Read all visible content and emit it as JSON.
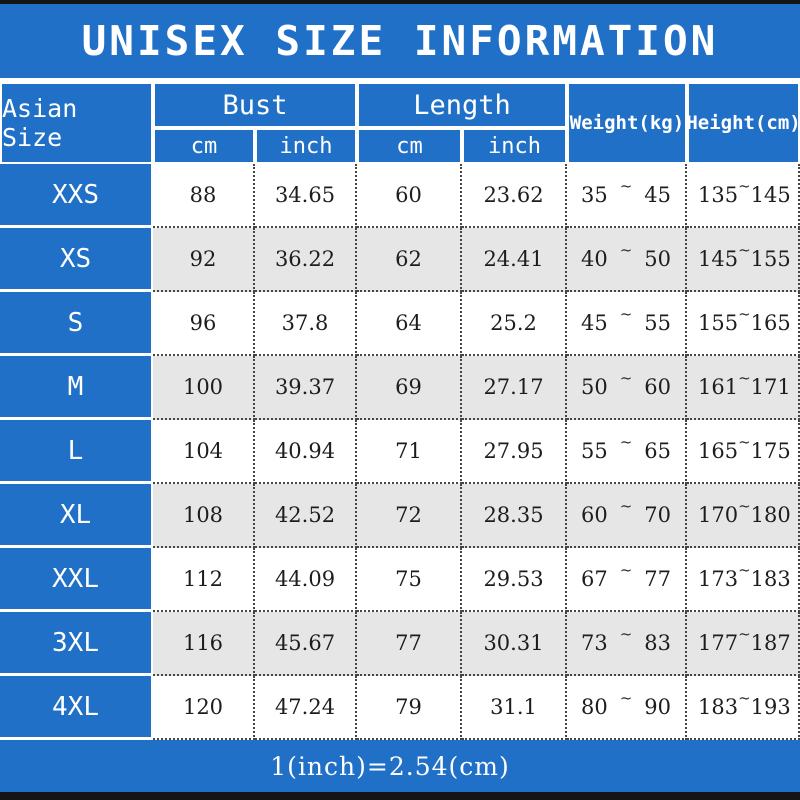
{
  "title": "UNISEX SIZE INFORMATION",
  "tilde": "~",
  "footer": {
    "conversion_note": "1(inch)=2.54(cm)"
  },
  "colors": {
    "blue": "#2170c7",
    "row_alt": "#e6e6e6",
    "bar": "#151515"
  },
  "header": {
    "size_col": "Asian Size",
    "bust": "Bust",
    "length": "Length",
    "cm": "cm",
    "inch": "inch",
    "weight": "Weight(kg)",
    "height": "Height(cm)"
  },
  "rows": [
    {
      "size": "XXS",
      "bust_cm": "88",
      "bust_inch": "34.65",
      "length_cm": "60",
      "length_inch": "23.62",
      "weight": {
        "min": "35",
        "max": "45"
      },
      "height": {
        "min": "135",
        "max": "145"
      }
    },
    {
      "size": "XS",
      "bust_cm": "92",
      "bust_inch": "36.22",
      "length_cm": "62",
      "length_inch": "24.41",
      "weight": {
        "min": "40",
        "max": "50"
      },
      "height": {
        "min": "145",
        "max": "155"
      }
    },
    {
      "size": "S",
      "bust_cm": "96",
      "bust_inch": "37.8",
      "length_cm": "64",
      "length_inch": "25.2",
      "weight": {
        "min": "45",
        "max": "55"
      },
      "height": {
        "min": "155",
        "max": "165"
      }
    },
    {
      "size": "M",
      "bust_cm": "100",
      "bust_inch": "39.37",
      "length_cm": "69",
      "length_inch": "27.17",
      "weight": {
        "min": "50",
        "max": "60"
      },
      "height": {
        "min": "161",
        "max": "171"
      }
    },
    {
      "size": "L",
      "bust_cm": "104",
      "bust_inch": "40.94",
      "length_cm": "71",
      "length_inch": "27.95",
      "weight": {
        "min": "55",
        "max": "65"
      },
      "height": {
        "min": "165",
        "max": "175"
      }
    },
    {
      "size": "XL",
      "bust_cm": "108",
      "bust_inch": "42.52",
      "length_cm": "72",
      "length_inch": "28.35",
      "weight": {
        "min": "60",
        "max": "70"
      },
      "height": {
        "min": "170",
        "max": "180"
      }
    },
    {
      "size": "XXL",
      "bust_cm": "112",
      "bust_inch": "44.09",
      "length_cm": "75",
      "length_inch": "29.53",
      "weight": {
        "min": "67",
        "max": "77"
      },
      "height": {
        "min": "173",
        "max": "183"
      }
    },
    {
      "size": "3XL",
      "bust_cm": "116",
      "bust_inch": "45.67",
      "length_cm": "77",
      "length_inch": "30.31",
      "weight": {
        "min": "73",
        "max": "83"
      },
      "height": {
        "min": "177",
        "max": "187"
      }
    },
    {
      "size": "4XL",
      "bust_cm": "120",
      "bust_inch": "47.24",
      "length_cm": "79",
      "length_inch": "31.1",
      "weight": {
        "min": "80",
        "max": "90"
      },
      "height": {
        "min": "183",
        "max": "193"
      }
    }
  ]
}
